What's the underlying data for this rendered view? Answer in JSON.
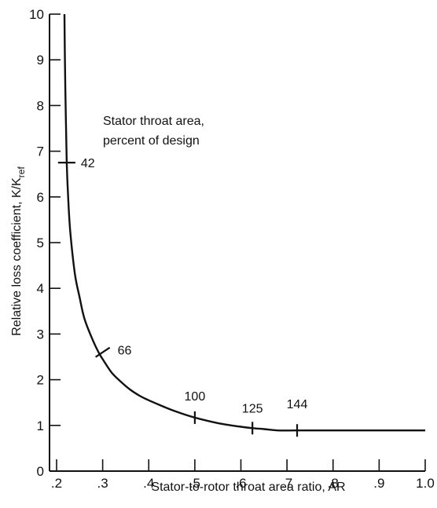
{
  "chart_data": {
    "type": "line",
    "xlabel": "Stator-to-rotor throat area ratio, AR",
    "ylabel_main": "Relative loss coefficient, K/K",
    "ylabel_sub": "ref",
    "annotation_line1": "Stator throat area,",
    "annotation_line2": "percent of design",
    "xlim": [
      0.2,
      1.0
    ],
    "ylim": [
      0,
      10
    ],
    "grid": false,
    "x_ticks": [
      {
        "value": 0.2,
        "label": ".2"
      },
      {
        "value": 0.3,
        "label": ".3"
      },
      {
        "value": 0.4,
        "label": ".4"
      },
      {
        "value": 0.5,
        "label": ".5"
      },
      {
        "value": 0.6,
        "label": ".6"
      },
      {
        "value": 0.7,
        "label": ".7"
      },
      {
        "value": 0.8,
        "label": ".8"
      },
      {
        "value": 0.9,
        "label": ".9"
      },
      {
        "value": 1.0,
        "label": "1.0"
      }
    ],
    "y_ticks": [
      {
        "value": 0,
        "label": "0"
      },
      {
        "value": 1,
        "label": "1"
      },
      {
        "value": 2,
        "label": "2"
      },
      {
        "value": 3,
        "label": "3"
      },
      {
        "value": 4,
        "label": "4"
      },
      {
        "value": 5,
        "label": "5"
      },
      {
        "value": 6,
        "label": "6"
      },
      {
        "value": 7,
        "label": "7"
      },
      {
        "value": 8,
        "label": "8"
      },
      {
        "value": 9,
        "label": "9"
      },
      {
        "value": 10,
        "label": "10"
      }
    ],
    "series": [
      {
        "x": [
          0.217,
          0.218,
          0.22,
          0.222,
          0.225,
          0.23,
          0.24,
          0.25,
          0.26,
          0.275,
          0.29,
          0.3,
          0.32,
          0.34,
          0.36,
          0.38,
          0.4,
          0.43,
          0.46,
          0.5,
          0.55,
          0.6,
          0.625,
          0.65,
          0.68,
          0.72,
          0.8,
          0.9,
          1.0
        ],
        "y": [
          10.0,
          9.0,
          7.8,
          6.75,
          6.0,
          5.2,
          4.3,
          3.8,
          3.35,
          2.95,
          2.62,
          2.45,
          2.15,
          1.95,
          1.78,
          1.65,
          1.55,
          1.42,
          1.3,
          1.17,
          1.05,
          0.97,
          0.94,
          0.92,
          0.89,
          0.89,
          0.89,
          0.89,
          0.89
        ]
      }
    ],
    "markers": [
      {
        "x": 0.222,
        "y": 6.75,
        "label": "42"
      },
      {
        "x": 0.3,
        "y": 2.6,
        "label": "66"
      },
      {
        "x": 0.5,
        "y": 1.17,
        "label": "100"
      },
      {
        "x": 0.625,
        "y": 0.94,
        "label": "125"
      },
      {
        "x": 0.722,
        "y": 0.89,
        "label": "144"
      }
    ]
  }
}
